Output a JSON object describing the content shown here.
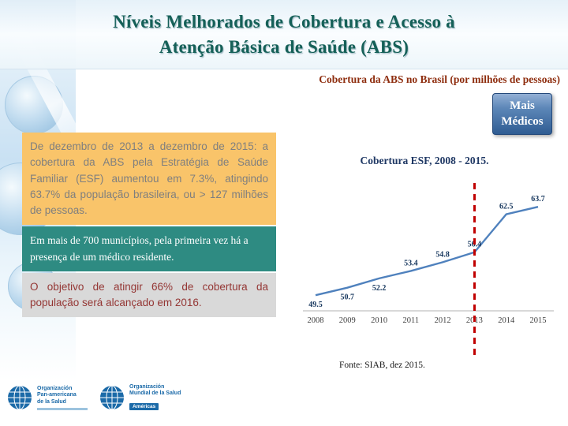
{
  "slide": {
    "title_line1": "Níveis Melhorados de Cobertura e Acesso à",
    "title_line2": "Atenção Básica de Saúde (ABS)",
    "subtitle": "Cobertura da ABS no Brasil (por milhões de pessoas)",
    "badge": {
      "line1": "Mais",
      "line2": "Médicos"
    },
    "info_boxes": [
      {
        "id": "yellow",
        "text": "De dezembro de 2013 a dezembro de 2015: a cobertura da ABS pela Estratégia de Saúde Familiar (ESF) aumentou em 7.3%, atingindo 63.7% da população brasileira, ou > 127 milhões de pessoas."
      },
      {
        "id": "teal",
        "text": "Em mais de 700 municípios, pela primeira vez há a presença de um médico residente."
      },
      {
        "id": "gray",
        "text": "O objetivo de atingir 66% de cobertura da população será alcançado em 2016."
      }
    ],
    "source": "Fonte: SIAB, dez 2015."
  },
  "palette": {
    "title_teal": "#156058",
    "subtitle_maroon": "#8e2d0e",
    "yellow_box": "#f9c46a",
    "teal_box": "#2e8b82",
    "gray_box": "#d9d9d9",
    "badge_blue": "#2f5c92"
  },
  "chart_data": {
    "type": "line",
    "title": "Cobertura ESF, 2008 - 2015.",
    "xlabel": "",
    "ylabel": "",
    "x": [
      "2008",
      "2009",
      "2010",
      "2011",
      "2012",
      "2013",
      "2014",
      "2015"
    ],
    "series": [
      {
        "name": "Cobertura ESF",
        "values": [
          49.5,
          50.7,
          52.2,
          53.4,
          54.8,
          56.4,
          62.5,
          63.7
        ]
      }
    ],
    "ylim": [
      48,
      66
    ],
    "grid": false,
    "legend": "none",
    "line_color": "#4f81bd",
    "annotations": [
      {
        "type": "vline",
        "x": "2013",
        "style": "dashed",
        "color": "#c00000"
      }
    ]
  },
  "footer_logos": [
    {
      "org_lines": [
        "Organización",
        "Pan-americana",
        "de la Salud"
      ]
    },
    {
      "org_lines": [
        "Organización",
        "Mundial de la Salud"
      ],
      "badge": "Américas"
    }
  ]
}
